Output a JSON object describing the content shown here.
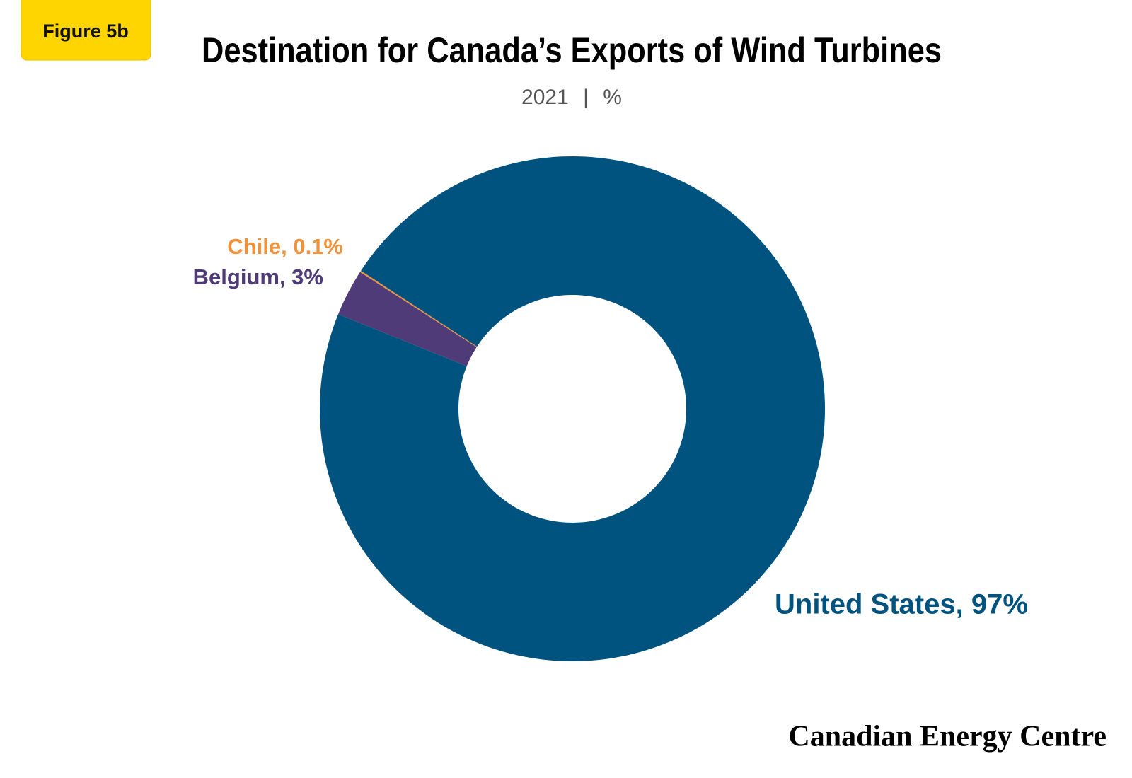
{
  "badge": "Figure 5b",
  "chart_data": {
    "type": "donut",
    "title": "Destination for Canada’s Exports of Wind Turbines",
    "subtitle": "2021 | %",
    "values": [
      3,
      0.1,
      97
    ],
    "value_labels": [
      "Belgium, 3%",
      "Chile, 0.1%",
      "United States, 97%"
    ],
    "colors": [
      "#4f3b77",
      "#f0923a",
      "#00527f"
    ]
  },
  "footer": "Canadian Energy Centre"
}
